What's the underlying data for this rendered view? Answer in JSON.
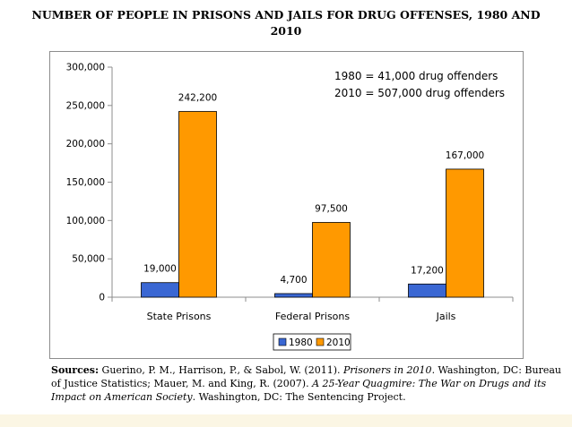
{
  "page": {
    "title_line1": "NUMBER OF PEOPLE IN PRISONS AND JAILS FOR DRUG OFFENSES, 1980 AND",
    "title_line2": "2010"
  },
  "chart_data": {
    "type": "bar",
    "categories": [
      "State Prisons",
      "Federal Prisons",
      "Jails"
    ],
    "series": [
      {
        "name": "1980",
        "values": [
          19000,
          4700,
          17200
        ],
        "labels": [
          "19,000",
          "4,700",
          "17,200"
        ],
        "color": "#3a67d3"
      },
      {
        "name": "2010",
        "values": [
          242200,
          97500,
          167000
        ],
        "labels": [
          "242,200",
          "97,500",
          "167,000"
        ],
        "color": "#ff9900"
      }
    ],
    "ylim": [
      0,
      300000
    ],
    "yticks": [
      0,
      50000,
      100000,
      150000,
      200000,
      250000,
      300000
    ],
    "ytick_labels": [
      "0",
      "50,000",
      "100,000",
      "150,000",
      "200,000",
      "250,000",
      "300,000"
    ],
    "annotations": [
      "1980 = 41,000 drug offenders",
      "2010 = 507,000 drug offenders"
    ],
    "legend_position": "bottom",
    "grid": false
  },
  "source": {
    "label": "Sources:",
    "part1": " Guerino, P. M., Harrison, P., & Sabol, W. (2011). ",
    "title1": "Prisoners in 2010",
    "part2": ". Washington, DC: Bureau of Justice Statistics; Mauer, M. and King, R. (2007). ",
    "title2": "A 25-Year Quagmire: The War on Drugs and its Impact on American Society",
    "part3": ". Washington, DC: The Sentencing Project."
  }
}
